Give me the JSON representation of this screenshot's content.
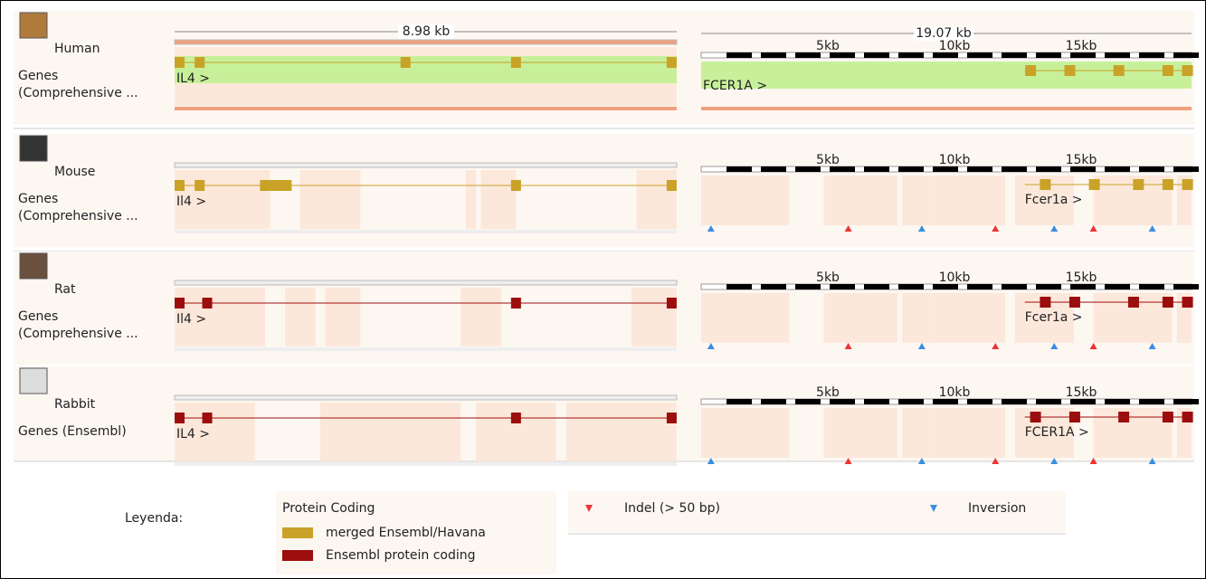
{
  "panels": [
    {
      "scale": "8.98 kb"
    },
    {
      "scale": "19.07 kb",
      "ticks": [
        "5kb",
        "10kb",
        "15kb"
      ]
    }
  ],
  "species": [
    {
      "name": "Human",
      "track": [
        "Genes",
        "(Comprehensive ..."
      ],
      "genes": [
        "IL4 >",
        "FCER1A >"
      ],
      "color": "#c9a227"
    },
    {
      "name": "Mouse",
      "track": [
        "Genes",
        "(Comprehensive ..."
      ],
      "genes": [
        "Il4 >",
        "Fcer1a >"
      ],
      "color": "#c9a227"
    },
    {
      "name": "Rat",
      "track": [
        "Genes",
        "(Comprehensive ..."
      ],
      "genes": [
        "Il4 >",
        "Fcer1a >"
      ],
      "color": "#9c0d0d"
    },
    {
      "name": "Rabbit",
      "track": [
        "Genes (Ensembl)"
      ],
      "genes": [
        "IL4 >",
        "FCER1A >"
      ],
      "color": "#9c0d0d"
    }
  ],
  "legend": {
    "title": "Leyenda:",
    "group": "Protein Coding",
    "items": [
      "merged Ensembl/Havana",
      "Ensembl protein coding",
      "Indel (> 50 bp)",
      "Inversion"
    ]
  }
}
